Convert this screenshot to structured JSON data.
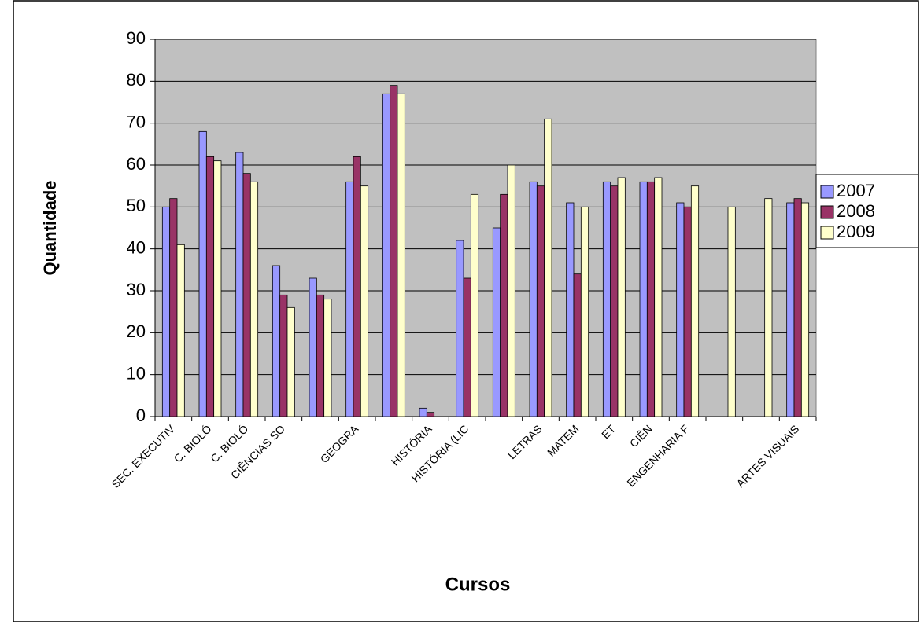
{
  "chart_data": {
    "type": "bar",
    "x_label": "Cursos",
    "y_label": "Quantidade",
    "categories": [
      "SEC. EXECUTIV",
      "C. BIOLÓ",
      "C. BIOLÓ",
      "CIÊNCIAS SO",
      null,
      "GEOGRA",
      null,
      "HISTÓRIA",
      "HISTÓRIA (LIC",
      null,
      "LETRAS",
      "MATEM",
      "ET",
      "CIÊN",
      "ENGENHARIA F",
      null,
      null,
      "ARTES VISUAIS"
    ],
    "series": [
      {
        "name": "2007",
        "color": "#9999ff",
        "values": [
          50,
          68,
          63,
          36,
          33,
          56,
          77,
          2,
          42,
          45,
          56,
          51,
          56,
          56,
          51,
          null,
          null,
          51
        ]
      },
      {
        "name": "2008",
        "color": "#993366",
        "values": [
          52,
          62,
          58,
          29,
          29,
          62,
          79,
          1,
          33,
          53,
          55,
          34,
          55,
          56,
          50,
          null,
          null,
          52
        ]
      },
      {
        "name": "2009",
        "color": "#ffffcc",
        "values": [
          41,
          61,
          56,
          26,
          28,
          55,
          77,
          0,
          53,
          60,
          71,
          50,
          57,
          57,
          55,
          50,
          52,
          51
        ]
      }
    ],
    "ylim": [
      0,
      90
    ],
    "yticks": [
      0,
      10,
      20,
      30,
      40,
      50,
      60,
      70,
      80,
      90
    ],
    "grid": true,
    "plot_background": "#c0c0c0",
    "legend": "right"
  }
}
